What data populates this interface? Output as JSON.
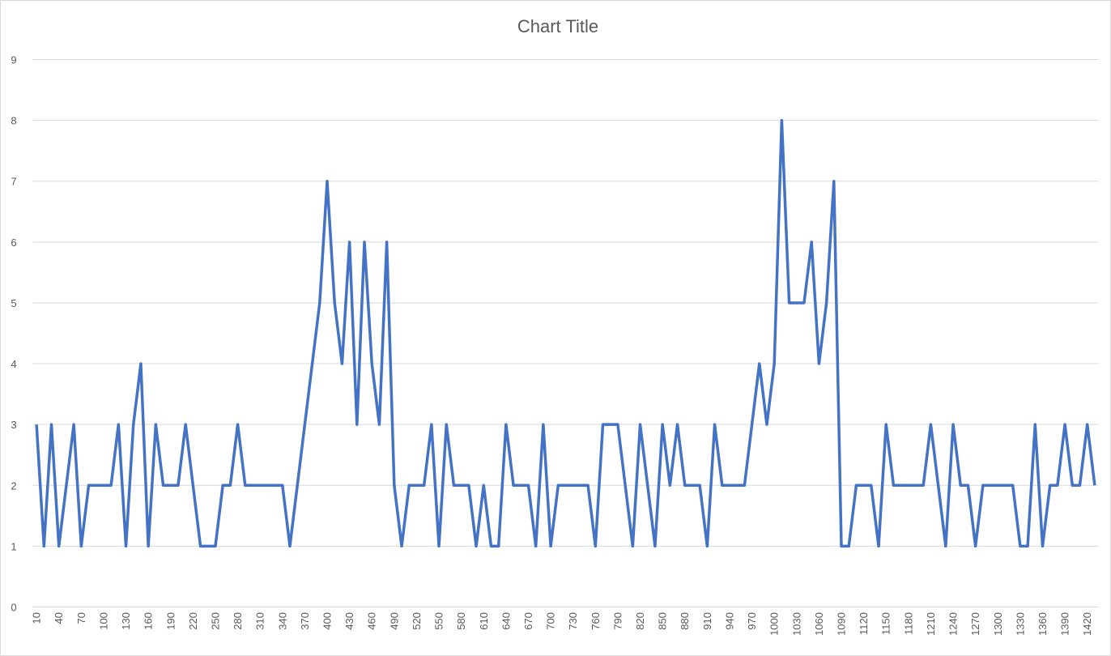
{
  "chart_data": {
    "type": "line",
    "title": "Chart Title",
    "categories": [
      10,
      null,
      null,
      40,
      null,
      null,
      70,
      null,
      null,
      100,
      null,
      null,
      130,
      null,
      null,
      160,
      null,
      null,
      190,
      null,
      null,
      220,
      null,
      null,
      250,
      null,
      null,
      280,
      null,
      null,
      310,
      null,
      null,
      340,
      null,
      null,
      370,
      null,
      null,
      400,
      null,
      null,
      430,
      null,
      null,
      460,
      null,
      null,
      490,
      null,
      null,
      520,
      null,
      null,
      550,
      null,
      null,
      580,
      null,
      null,
      610,
      null,
      null,
      640,
      null,
      null,
      670,
      null,
      null,
      700,
      null,
      null,
      730,
      null,
      null,
      760,
      null,
      null,
      790,
      null,
      null,
      820,
      null,
      null,
      850,
      null,
      null,
      880,
      null,
      null,
      910,
      null,
      null,
      940,
      null,
      null,
      970,
      null,
      null,
      1000,
      null,
      null,
      1030,
      null,
      null,
      1060,
      null,
      null,
      1090,
      null,
      null,
      1120,
      null,
      null,
      1150,
      null,
      null,
      1180,
      null,
      null,
      1210,
      null,
      null,
      1240,
      null,
      null,
      1270,
      null,
      null,
      1300,
      null,
      null,
      1330,
      null,
      null,
      1360,
      null,
      null,
      1390,
      null,
      null,
      1420,
      null
    ],
    "values": [
      3,
      1,
      3,
      1,
      2,
      3,
      1,
      2,
      2,
      2,
      2,
      3,
      1,
      3,
      4,
      1,
      3,
      2,
      2,
      2,
      3,
      2,
      1,
      1,
      1,
      2,
      2,
      3,
      2,
      2,
      2,
      2,
      2,
      2,
      1,
      2,
      3,
      4,
      5,
      7,
      5,
      4,
      6,
      3,
      6,
      4,
      3,
      6,
      2,
      1,
      2,
      2,
      2,
      3,
      1,
      3,
      2,
      2,
      2,
      1,
      2,
      1,
      1,
      3,
      2,
      2,
      2,
      1,
      3,
      1,
      2,
      2,
      2,
      2,
      2,
      1,
      3,
      3,
      3,
      2,
      1,
      3,
      2,
      1,
      3,
      2,
      3,
      2,
      2,
      2,
      1,
      3,
      2,
      2,
      2,
      2,
      3,
      4,
      3,
      4,
      8,
      5,
      5,
      5,
      6,
      4,
      5,
      7,
      1,
      1,
      2,
      2,
      2,
      1,
      3,
      2,
      2,
      2,
      2,
      2,
      3,
      2,
      1,
      3,
      2,
      2,
      1,
      2,
      2,
      2,
      2,
      2,
      1,
      1,
      3,
      1,
      2,
      2,
      3,
      2,
      2,
      3,
      2
    ],
    "color": "#4472c4",
    "ylim": [
      0,
      9
    ],
    "yticks": [
      0,
      1,
      2,
      3,
      4,
      5,
      6,
      7,
      8,
      9
    ],
    "grid": true
  }
}
